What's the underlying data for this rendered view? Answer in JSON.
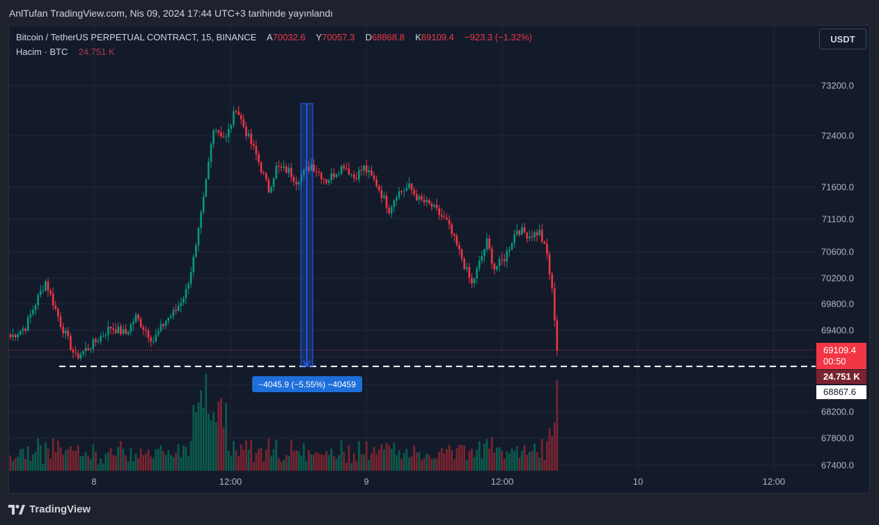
{
  "header": {
    "title": "AnlTufan TradingView.com, Nis 09, 2024 17:44 UTC+3 tarihinde yayınlandı"
  },
  "legend": {
    "symbol": "Bitcoin / TetherUS PERPETUAL CONTRACT, 15, BINANCE",
    "open_label": "A",
    "open": "70032.6",
    "high_label": "Y",
    "high": "70057.3",
    "low_label": "D",
    "low": "68868.8",
    "close_label": "K",
    "close": "69109.4",
    "change": "−923.3 (−1.32%)",
    "volume_label": "Hacim · BTC",
    "volume": "24.751 K"
  },
  "toolbar": {
    "currency": "USDT"
  },
  "price_axis": {
    "ticks": [
      "73200.0",
      "72400.0",
      "71600.0",
      "71100.0",
      "70600.0",
      "70200.0",
      "69800.0",
      "69400.0",
      "68200.0",
      "67800.0",
      "67400.0"
    ],
    "last_price": "69109.4",
    "countdown": "00:50",
    "volume_tag": "24.751 K",
    "marked_level": "68867.6"
  },
  "time_axis": {
    "ticks": [
      "8",
      "12:00",
      "9",
      "12:00",
      "10",
      "12:00"
    ]
  },
  "measure": {
    "label": "−4045.9 (−5.55%) −40459"
  },
  "footer": {
    "brand": "TradingView"
  },
  "colors": {
    "up": "#089981",
    "down": "#f23645",
    "background": "#131b2b",
    "measure": "#2962ff"
  },
  "chart_data": {
    "type": "candlestick",
    "interval": "15",
    "x_labels": [
      "8",
      "12:00",
      "9",
      "12:00",
      "10",
      "12:00"
    ],
    "ylim": [
      67200,
      73600
    ],
    "key_levels": [
      {
        "name": "last_price",
        "value": 69109.4
      },
      {
        "name": "marked_low",
        "value": 68867.6
      }
    ],
    "anchors": [
      {
        "t": 0,
        "p": 69300
      },
      {
        "t": 6,
        "p": 69450
      },
      {
        "t": 11,
        "p": 69900
      },
      {
        "t": 14,
        "p": 70150
      },
      {
        "t": 20,
        "p": 69500
      },
      {
        "t": 26,
        "p": 69000
      },
      {
        "t": 33,
        "p": 69200
      },
      {
        "t": 40,
        "p": 69450
      },
      {
        "t": 46,
        "p": 69350
      },
      {
        "t": 50,
        "p": 69600
      },
      {
        "t": 57,
        "p": 69250
      },
      {
        "t": 62,
        "p": 69550
      },
      {
        "t": 66,
        "p": 69700
      },
      {
        "t": 70,
        "p": 70000
      },
      {
        "t": 74,
        "p": 70650
      },
      {
        "t": 77,
        "p": 71400
      },
      {
        "t": 81,
        "p": 72550
      },
      {
        "t": 86,
        "p": 72350
      },
      {
        "t": 90,
        "p": 72850
      },
      {
        "t": 94,
        "p": 72450
      },
      {
        "t": 98,
        "p": 72100
      },
      {
        "t": 103,
        "p": 71550
      },
      {
        "t": 106,
        "p": 71900
      },
      {
        "t": 111,
        "p": 71850
      },
      {
        "t": 114,
        "p": 71700
      },
      {
        "t": 120,
        "p": 71950
      },
      {
        "t": 126,
        "p": 71700
      },
      {
        "t": 133,
        "p": 71950
      },
      {
        "t": 137,
        "p": 71750
      },
      {
        "t": 141,
        "p": 71900
      },
      {
        "t": 146,
        "p": 71650
      },
      {
        "t": 151,
        "p": 71250
      },
      {
        "t": 154,
        "p": 71500
      },
      {
        "t": 159,
        "p": 71600
      },
      {
        "t": 163,
        "p": 71400
      },
      {
        "t": 168,
        "p": 71300
      },
      {
        "t": 174,
        "p": 71050
      },
      {
        "t": 180,
        "p": 70500
      },
      {
        "t": 184,
        "p": 70100
      },
      {
        "t": 190,
        "p": 70750
      },
      {
        "t": 193,
        "p": 70350
      },
      {
        "t": 197,
        "p": 70500
      },
      {
        "t": 202,
        "p": 70950
      },
      {
        "t": 207,
        "p": 70850
      },
      {
        "t": 211,
        "p": 70900
      },
      {
        "t": 214,
        "p": 70550
      },
      {
        "t": 216,
        "p": 70000
      },
      {
        "t": 218,
        "p": 69100
      }
    ]
  }
}
